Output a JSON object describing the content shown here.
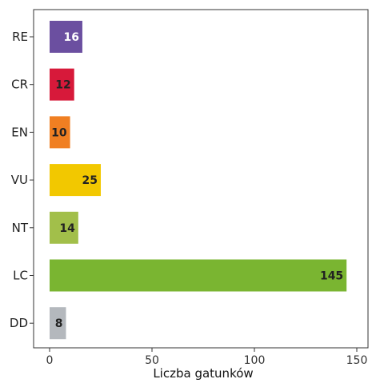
{
  "chart_data": {
    "type": "bar",
    "orientation": "horizontal",
    "categories": [
      "RE",
      "CR",
      "EN",
      "VU",
      "NT",
      "LC",
      "DD"
    ],
    "values": [
      16,
      12,
      10,
      25,
      14,
      145,
      8
    ],
    "colors": [
      "#6b4fa0",
      "#d7193a",
      "#f07f22",
      "#f2c800",
      "#a2bf4a",
      "#7ab531",
      "#b4b8bd"
    ],
    "label_colors": [
      "#ffffff",
      "#222222",
      "#222222",
      "#222222",
      "#222222",
      "#222222",
      "#222222"
    ],
    "xlabel": "Liczba gatunków",
    "ylabel": "",
    "xlim": [
      0,
      150
    ],
    "xticks": [
      0,
      50,
      100,
      150
    ],
    "grid": false,
    "legend": "none"
  }
}
